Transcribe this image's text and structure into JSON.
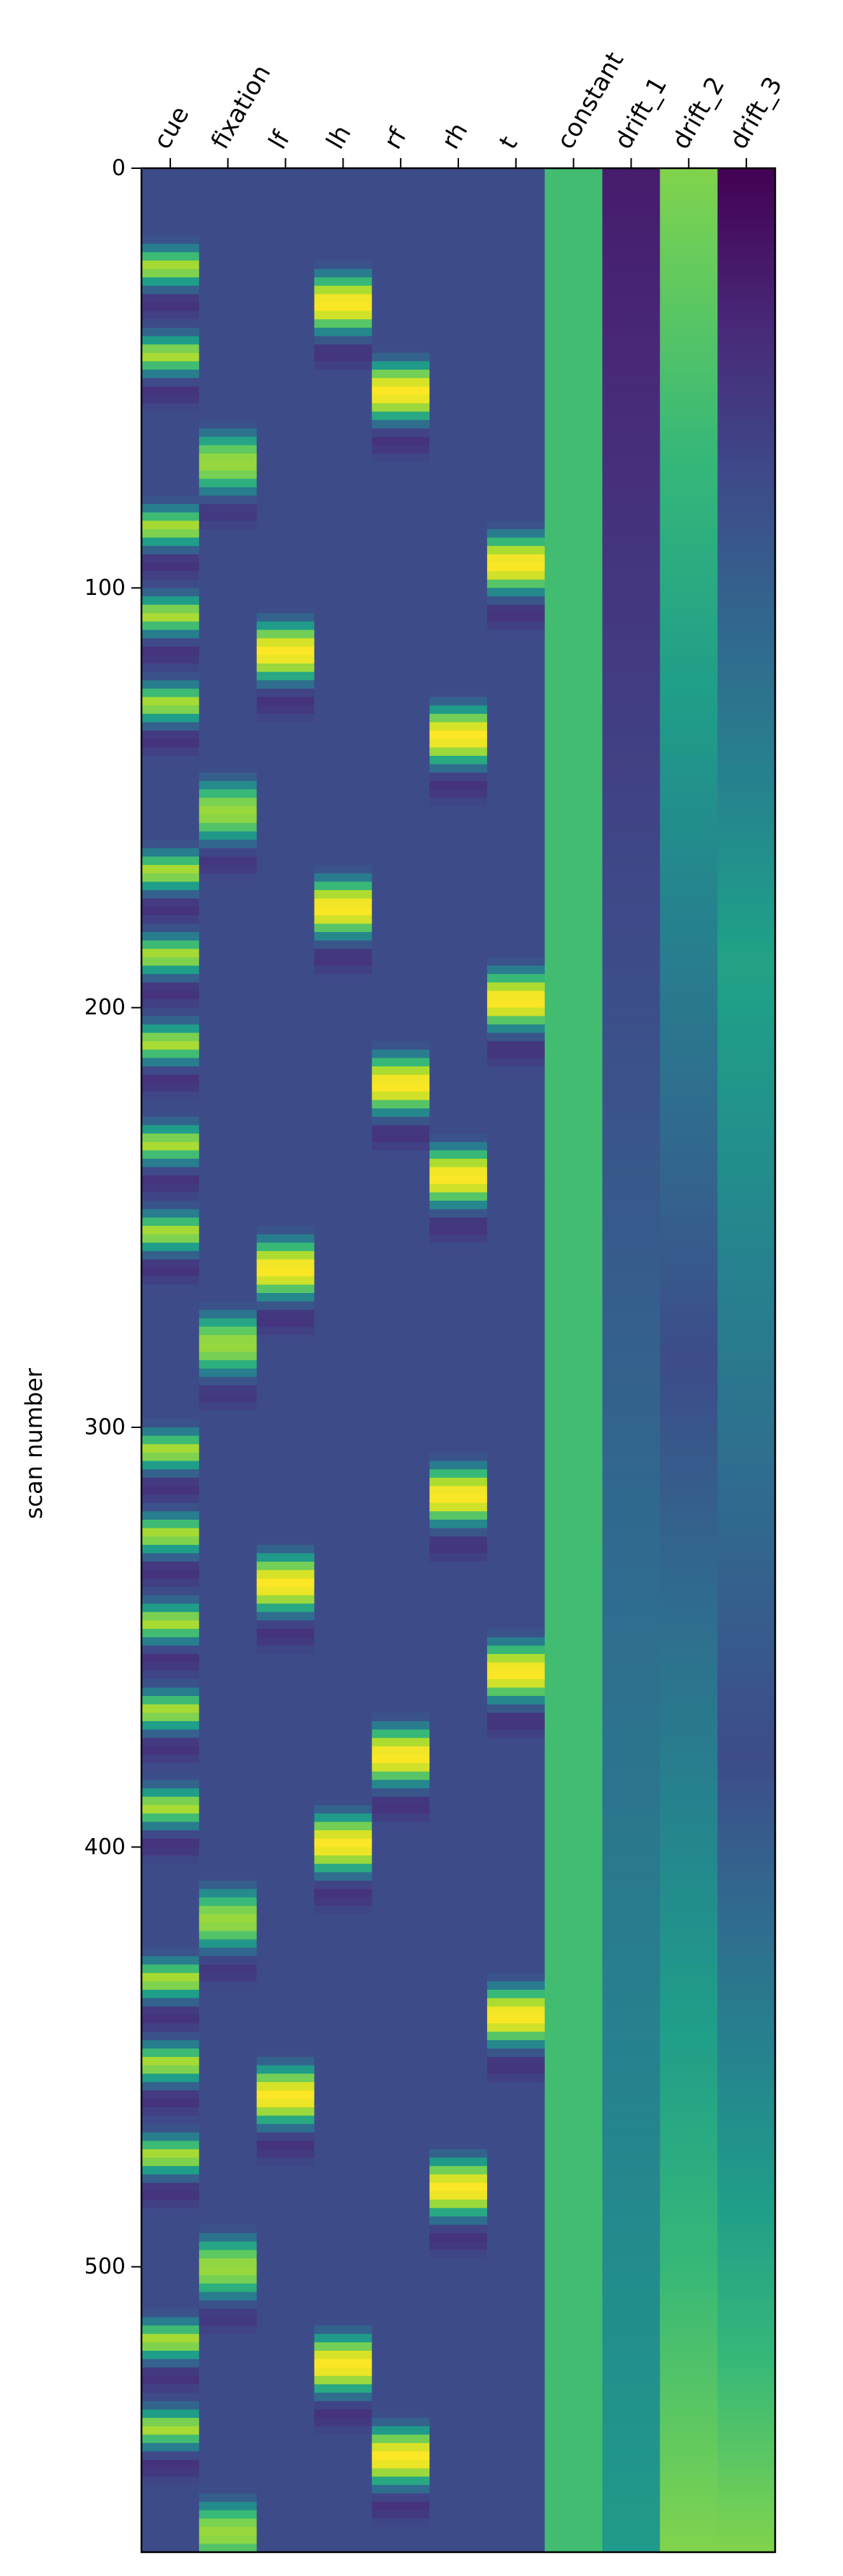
{
  "chart_data": {
    "type": "heatmap",
    "title": "",
    "xlabel": "",
    "ylabel": "scan number",
    "ylim": [
      0,
      568
    ],
    "y_ticks": [
      0,
      100,
      200,
      300,
      400,
      500
    ],
    "y_tick_labels": [
      "0",
      "100",
      "200",
      "300",
      "400",
      "500"
    ],
    "columns": [
      "cue",
      "fixation",
      "lf",
      "lh",
      "rf",
      "rh",
      "t",
      "constant",
      "drift_1",
      "drift_2",
      "drift_3"
    ],
    "colormap": "viridis",
    "value_range": [
      -0.3,
      1.0
    ],
    "n_scans": 568,
    "events": {
      "cue": [
        [
          18,
          6
        ],
        [
          39,
          6
        ],
        [
          80,
          6
        ],
        [
          101,
          6
        ],
        [
          122,
          6
        ],
        [
          162,
          6
        ],
        [
          182,
          6
        ],
        [
          203,
          6
        ],
        [
          227,
          6
        ],
        [
          248,
          6
        ],
        [
          300,
          6
        ],
        [
          320,
          6
        ],
        [
          341,
          6
        ],
        [
          362,
          6
        ],
        [
          385,
          6
        ],
        [
          426,
          6
        ],
        [
          446,
          6
        ],
        [
          468,
          6
        ],
        [
          512,
          6
        ],
        [
          533,
          6
        ]
      ],
      "fixation": [
        [
          62,
          12
        ],
        [
          145,
          12
        ],
        [
          272,
          12
        ],
        [
          409,
          12
        ],
        [
          492,
          12
        ],
        [
          555,
          12
        ]
      ],
      "lf": [
        [
          107,
          12
        ],
        [
          254,
          12
        ],
        [
          329,
          12
        ],
        [
          451,
          12
        ]
      ],
      "lh": [
        [
          24,
          12
        ],
        [
          168,
          12
        ],
        [
          391,
          12
        ],
        [
          515,
          12
        ]
      ],
      "rf": [
        [
          45,
          12
        ],
        [
          210,
          12
        ],
        [
          370,
          12
        ],
        [
          537,
          12
        ]
      ],
      "rh": [
        [
          127,
          12
        ],
        [
          232,
          12
        ],
        [
          308,
          12
        ],
        [
          473,
          12
        ]
      ],
      "t": [
        [
          86,
          12
        ],
        [
          190,
          12
        ],
        [
          350,
          12
        ],
        [
          432,
          12
        ]
      ]
    },
    "event_peak": {
      "cue": 0.85,
      "fixation": 0.8,
      "lf": 1.0,
      "lh": 1.0,
      "rf": 1.0,
      "rh": 1.0,
      "t": 1.0
    },
    "constant_value": 0.6,
    "drift_1": [
      -0.2,
      0.4
    ],
    "drift_2": [
      0.75,
      0.0,
      0.75
    ],
    "drift_3": [
      -0.3,
      0.45,
      0.0,
      0.75
    ]
  }
}
